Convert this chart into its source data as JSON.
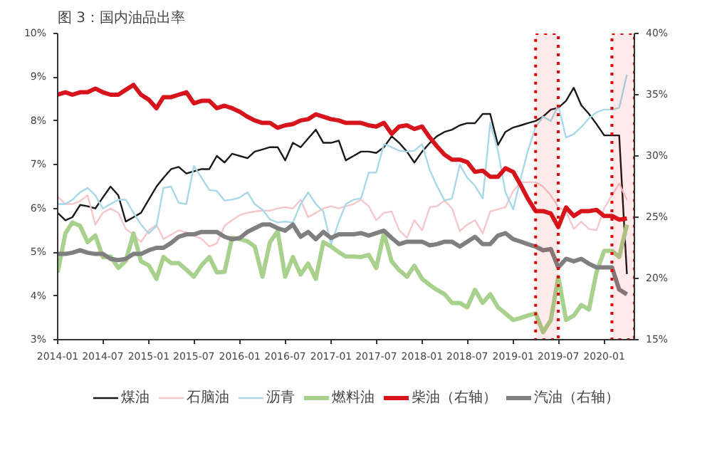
{
  "chart_data": {
    "type": "line",
    "title": "图 3：国内油品出率",
    "x": [
      "2014-01",
      "2014-02",
      "2014-03",
      "2014-04",
      "2014-05",
      "2014-06",
      "2014-07",
      "2014-08",
      "2014-09",
      "2014-10",
      "2014-11",
      "2014-12",
      "2015-01",
      "2015-02",
      "2015-03",
      "2015-04",
      "2015-05",
      "2015-06",
      "2015-07",
      "2015-08",
      "2015-09",
      "2015-10",
      "2015-11",
      "2015-12",
      "2016-01",
      "2016-02",
      "2016-03",
      "2016-04",
      "2016-05",
      "2016-06",
      "2016-07",
      "2016-08",
      "2016-09",
      "2016-10",
      "2016-11",
      "2016-12",
      "2017-01",
      "2017-02",
      "2017-03",
      "2017-04",
      "2017-05",
      "2017-06",
      "2017-07",
      "2017-08",
      "2017-09",
      "2017-10",
      "2017-11",
      "2017-12",
      "2018-01",
      "2018-02",
      "2018-03",
      "2018-04",
      "2018-05",
      "2018-06",
      "2018-07",
      "2018-08",
      "2018-09",
      "2018-10",
      "2018-11",
      "2018-12",
      "2019-01",
      "2019-02",
      "2019-03",
      "2019-04",
      "2019-05",
      "2019-06",
      "2019-07",
      "2019-08",
      "2019-09",
      "2019-10",
      "2019-11",
      "2019-12",
      "2020-01",
      "2020-02",
      "2020-03",
      "2020-04"
    ],
    "series": [
      {
        "name": "煤油",
        "color": "#1a1a1a",
        "values": [
          5.9,
          5.73,
          5.8,
          6.08,
          6.05,
          6.0,
          6.25,
          6.5,
          6.3,
          5.7,
          5.8,
          5.9,
          6.2,
          6.5,
          6.7,
          6.9,
          6.95,
          6.8,
          6.85,
          6.9,
          6.9,
          7.2,
          7.05,
          7.25,
          7.2,
          7.15,
          7.3,
          7.35,
          7.4,
          7.4,
          7.1,
          7.5,
          7.4,
          7.6,
          7.8,
          7.5,
          7.5,
          7.55,
          7.1,
          7.2,
          7.3,
          7.3,
          7.27,
          7.4,
          7.65,
          7.5,
          7.3,
          7.05,
          7.3,
          7.5,
          7.65,
          7.75,
          7.8,
          7.9,
          7.95,
          7.95,
          8.16,
          8.16,
          7.45,
          7.75,
          7.85,
          7.9,
          7.95,
          8.0,
          8.1,
          8.26,
          8.3,
          8.46,
          8.76,
          8.36,
          8.16,
          7.93,
          7.67,
          7.67,
          7.67,
          4.5
        ]
      },
      {
        "name": "石脑油",
        "color": "#f4c7cc",
        "values": [
          6.27,
          6.1,
          6.1,
          6.17,
          6.3,
          5.63,
          5.9,
          6.0,
          5.9,
          5.53,
          5.4,
          5.23,
          5.5,
          5.63,
          5.3,
          5.4,
          5.5,
          5.45,
          5.38,
          5.3,
          5.13,
          5.2,
          5.6,
          5.73,
          5.85,
          5.9,
          5.93,
          5.95,
          5.95,
          6.0,
          6.03,
          6.0,
          6.2,
          5.8,
          5.9,
          6.0,
          6.05,
          6.0,
          6.05,
          6.1,
          6.2,
          6.05,
          5.73,
          5.9,
          5.93,
          5.5,
          5.33,
          5.73,
          5.5,
          6.03,
          6.05,
          6.18,
          6.0,
          5.48,
          5.63,
          5.73,
          5.43,
          5.93,
          5.98,
          6.03,
          6.4,
          6.6,
          6.6,
          6.6,
          6.5,
          6.3,
          6.03,
          5.93,
          5.53,
          5.7,
          5.53,
          5.5,
          6.0,
          6.3,
          6.57,
          6.2
        ]
      },
      {
        "name": "沥青",
        "color": "#a8d8e8",
        "values": [
          6.1,
          6.1,
          6.2,
          6.37,
          6.47,
          6.3,
          6.0,
          6.1,
          6.2,
          6.2,
          5.9,
          5.63,
          5.43,
          5.6,
          6.47,
          6.5,
          6.13,
          6.1,
          6.97,
          6.7,
          6.42,
          6.4,
          6.18,
          6.2,
          6.25,
          6.37,
          6.1,
          5.97,
          5.75,
          5.68,
          5.7,
          5.68,
          6.1,
          6.37,
          6.1,
          5.93,
          5.18,
          5.7,
          6.1,
          6.2,
          6.23,
          6.82,
          6.82,
          7.47,
          7.4,
          7.32,
          7.3,
          7.32,
          7.47,
          6.87,
          6.52,
          6.18,
          6.23,
          7.0,
          6.7,
          6.52,
          6.23,
          7.96,
          7.32,
          6.37,
          5.98,
          6.7,
          7.32,
          7.86,
          8.1,
          8.0,
          8.36,
          7.62,
          7.7,
          7.86,
          8.06,
          8.2,
          8.26,
          8.26,
          8.3,
          9.06
        ]
      },
      {
        "name": "燃料油",
        "color": "#a9d18e",
        "values": [
          4.54,
          5.43,
          5.68,
          5.6,
          5.23,
          5.38,
          4.89,
          4.9,
          4.64,
          4.8,
          5.43,
          4.79,
          4.7,
          4.39,
          4.89,
          4.75,
          4.75,
          4.6,
          4.44,
          4.7,
          4.89,
          4.54,
          4.55,
          5.33,
          5.3,
          5.25,
          5.13,
          4.44,
          5.23,
          5.48,
          4.44,
          4.89,
          4.49,
          4.74,
          4.39,
          5.23,
          5.13,
          5.0,
          4.9,
          4.9,
          4.89,
          4.94,
          4.64,
          5.43,
          4.79,
          4.59,
          4.44,
          4.69,
          4.39,
          4.25,
          4.14,
          4.04,
          3.84,
          3.84,
          3.74,
          4.14,
          3.84,
          4.04,
          3.74,
          3.6,
          3.45,
          3.5,
          3.55,
          3.6,
          3.17,
          3.45,
          4.44,
          3.45,
          3.55,
          3.79,
          3.69,
          4.54,
          5.03,
          5.03,
          4.89,
          5.63
        ]
      },
      {
        "name": "柴油（右轴）",
        "color": "#d7141c",
        "axis": "y2",
        "values": [
          35.0,
          35.2,
          35.0,
          35.2,
          35.2,
          35.5,
          35.2,
          35.0,
          35.0,
          35.4,
          35.8,
          35.0,
          34.6,
          33.9,
          34.8,
          34.8,
          35.0,
          35.2,
          34.3,
          34.5,
          34.5,
          33.9,
          34.1,
          33.9,
          33.6,
          33.2,
          32.9,
          32.7,
          32.7,
          32.3,
          32.5,
          32.6,
          32.9,
          33.0,
          33.4,
          33.2,
          33.0,
          32.9,
          32.7,
          32.7,
          32.7,
          32.5,
          32.4,
          32.7,
          31.8,
          32.4,
          32.5,
          32.2,
          32.4,
          31.5,
          30.8,
          30.1,
          29.7,
          29.7,
          29.5,
          28.7,
          28.8,
          28.3,
          28.3,
          29.0,
          28.7,
          27.6,
          26.5,
          25.5,
          25.5,
          25.3,
          24.2,
          25.8,
          25.1,
          25.5,
          25.5,
          25.6,
          25.1,
          25.1,
          24.8,
          24.9
        ]
      },
      {
        "name": "汽油（右轴）",
        "color": "#7f7f7f",
        "axis": "y2",
        "values": [
          22.0,
          22.0,
          22.1,
          22.3,
          22.1,
          22.0,
          22.0,
          21.6,
          21.5,
          21.6,
          22.0,
          22.0,
          22.3,
          22.5,
          22.5,
          22.9,
          23.4,
          23.6,
          23.6,
          23.8,
          23.8,
          23.8,
          23.4,
          23.2,
          23.3,
          23.8,
          24.1,
          24.4,
          24.4,
          24.1,
          23.9,
          24.4,
          23.4,
          23.8,
          23.2,
          23.8,
          23.3,
          23.6,
          23.6,
          23.6,
          23.7,
          23.5,
          23.7,
          23.9,
          23.3,
          22.8,
          23.0,
          23.0,
          23.0,
          22.7,
          22.8,
          23.0,
          23.0,
          22.6,
          23.0,
          23.4,
          22.8,
          22.8,
          23.5,
          23.7,
          23.2,
          23.0,
          22.8,
          22.6,
          22.3,
          22.4,
          20.9,
          21.6,
          21.4,
          21.6,
          21.2,
          20.9,
          20.9,
          20.9,
          19.1,
          18.7
        ]
      }
    ],
    "xlim": [
      "2014-01",
      "2020-05"
    ],
    "xticks": [
      "2014-01",
      "2014-07",
      "2015-01",
      "2015-07",
      "2016-01",
      "2016-07",
      "2017-01",
      "2017-07",
      "2018-01",
      "2018-07",
      "2019-01",
      "2019-07",
      "2020-01"
    ],
    "ylim": [
      3,
      10
    ],
    "yticks": [
      {
        "value": 3,
        "label": "3%"
      },
      {
        "value": 4,
        "label": "4%"
      },
      {
        "value": 5,
        "label": "5%"
      },
      {
        "value": 6,
        "label": "6%"
      },
      {
        "value": 7,
        "label": "7%"
      },
      {
        "value": 8,
        "label": "8%"
      },
      {
        "value": 9,
        "label": "9%"
      },
      {
        "value": 10,
        "label": "10%"
      }
    ],
    "y2lim": [
      15,
      40
    ],
    "y2ticks": [
      {
        "value": 15,
        "label": "15%"
      },
      {
        "value": 20,
        "label": "20%"
      },
      {
        "value": 25,
        "label": "25%"
      },
      {
        "value": 30,
        "label": "30%"
      },
      {
        "value": 35,
        "label": "35%"
      },
      {
        "value": 40,
        "label": "40%"
      }
    ],
    "bands": [
      {
        "axis": "x",
        "from": "2019-04",
        "to": "2019-07",
        "color": "#e00000"
      },
      {
        "axis": "x",
        "from": "2020-02",
        "to": "2020-05",
        "color": "#e00000"
      }
    ],
    "grid": false,
    "legend": "bottom",
    "marker": "none",
    "line_style": "solid"
  }
}
